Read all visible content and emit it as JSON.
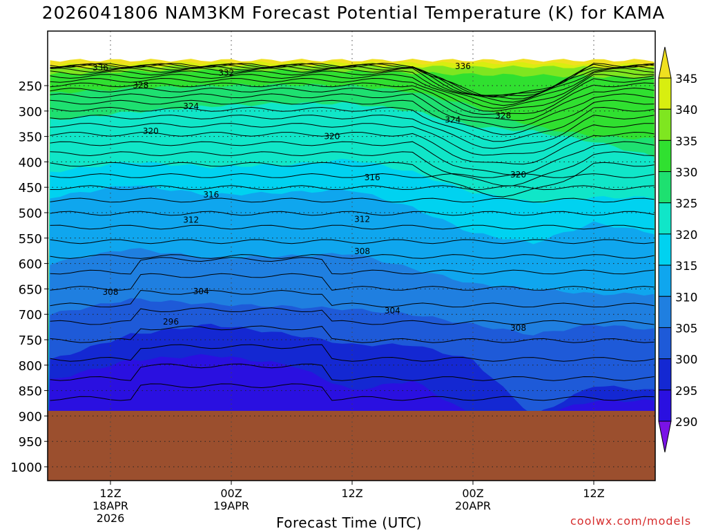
{
  "chart_data": {
    "type": "heatmap",
    "title": "2026041806 NAM3KM Forecast Potential Temperature (K) for KAMA",
    "xlabel": "Forecast Time (UTC)",
    "ylabel": "",
    "credit": "coolwx.com/models",
    "y_axis": {
      "scale": "linear-pressure-inverted",
      "range_hPa": [
        1000,
        200
      ],
      "ticks": [
        250,
        300,
        350,
        400,
        450,
        500,
        550,
        600,
        650,
        700,
        750,
        800,
        850,
        900,
        950,
        1000
      ]
    },
    "x_axis": {
      "ticks": [
        {
          "line1": "12Z",
          "line2": "18APR",
          "line3": "2026",
          "hour": 6
        },
        {
          "line1": "00Z",
          "line2": "19APR",
          "line3": "",
          "hour": 18
        },
        {
          "line1": "12Z",
          "line2": "",
          "line3": "",
          "hour": 30
        },
        {
          "line1": "00Z",
          "line2": "20APR",
          "line3": "",
          "hour": 42
        },
        {
          "line1": "12Z",
          "line2": "",
          "line3": "",
          "hour": 54
        }
      ],
      "range_hours": [
        0,
        60
      ]
    },
    "grid": true,
    "colorbar": {
      "levels": [
        290,
        295,
        300,
        305,
        310,
        315,
        320,
        325,
        330,
        335,
        340,
        345
      ],
      "colors": [
        "#7a12e6",
        "#2a10e0",
        "#1428d2",
        "#1e5ad8",
        "#1f7fe0",
        "#0fa6ee",
        "#00d2f0",
        "#10e6c8",
        "#1ee070",
        "#30e030",
        "#7fe620",
        "#d8ee10",
        "#f0e020"
      ],
      "placement": "right"
    },
    "terrain_color": "#9b4f2e",
    "surface_pressure_hPa": 890,
    "contour_labels": [
      {
        "value": "336",
        "hour": 5,
        "p": 215
      },
      {
        "value": "336",
        "hour": 41,
        "p": 212
      },
      {
        "value": "332",
        "hour": 17.5,
        "p": 225
      },
      {
        "value": "328",
        "hour": 9,
        "p": 249
      },
      {
        "value": "328",
        "hour": 45,
        "p": 309
      },
      {
        "value": "324",
        "hour": 14,
        "p": 291
      },
      {
        "value": "324",
        "hour": 40,
        "p": 317
      },
      {
        "value": "320",
        "hour": 10,
        "p": 340
      },
      {
        "value": "320",
        "hour": 28,
        "p": 350
      },
      {
        "value": "320",
        "hour": 46.5,
        "p": 425
      },
      {
        "value": "316",
        "hour": 16,
        "p": 465
      },
      {
        "value": "316",
        "hour": 32,
        "p": 431
      },
      {
        "value": "312",
        "hour": 14,
        "p": 514
      },
      {
        "value": "312",
        "hour": 31,
        "p": 513
      },
      {
        "value": "308",
        "hour": 6,
        "p": 656
      },
      {
        "value": "308",
        "hour": 31,
        "p": 576
      },
      {
        "value": "308",
        "hour": 46.5,
        "p": 727
      },
      {
        "value": "304",
        "hour": 15,
        "p": 655
      },
      {
        "value": "304",
        "hour": 34,
        "p": 693
      },
      {
        "value": "296",
        "hour": 12,
        "p": 715
      }
    ]
  }
}
